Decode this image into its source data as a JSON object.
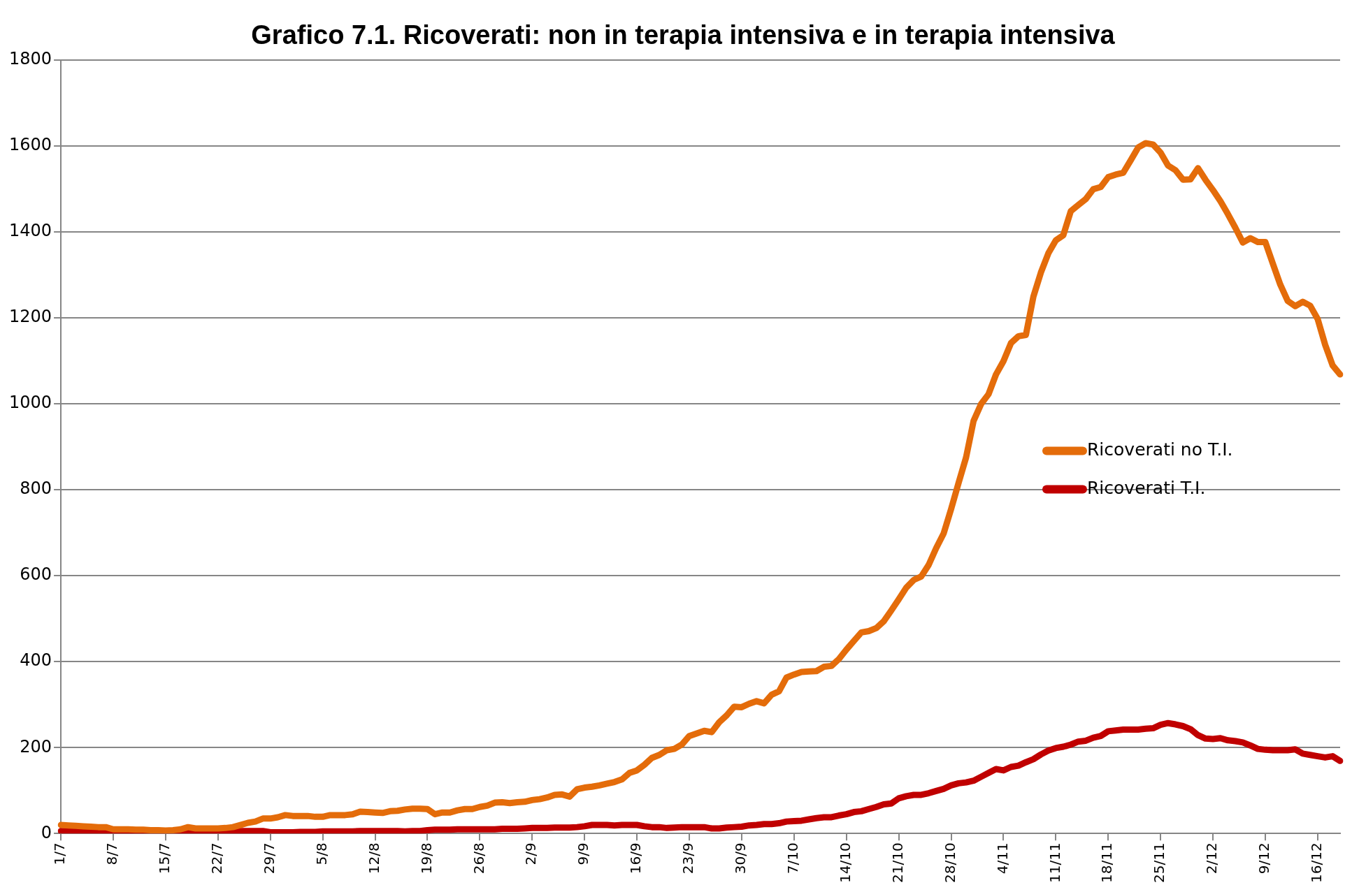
{
  "chart_data": {
    "type": "line",
    "title": "Grafico 7.1. Ricoverati: non in terapia intensiva e in terapia intensiva",
    "categories": [
      "1/7",
      null,
      null,
      null,
      null,
      null,
      null,
      "8/7",
      null,
      null,
      null,
      null,
      null,
      null,
      "15/7",
      null,
      null,
      null,
      null,
      null,
      null,
      "22/7",
      null,
      null,
      null,
      null,
      null,
      null,
      "29/7",
      null,
      null,
      null,
      null,
      null,
      null,
      "5/8",
      null,
      null,
      null,
      null,
      null,
      null,
      "12/8",
      null,
      null,
      null,
      null,
      null,
      null,
      "19/8",
      null,
      null,
      null,
      null,
      null,
      null,
      "26/8",
      null,
      null,
      null,
      null,
      null,
      null,
      "2/9",
      null,
      null,
      null,
      null,
      null,
      null,
      "9/9",
      null,
      null,
      null,
      null,
      null,
      null,
      "16/9",
      null,
      null,
      null,
      null,
      null,
      null,
      "23/9",
      null,
      null,
      null,
      null,
      null,
      null,
      "30/9",
      null,
      null,
      null,
      null,
      null,
      null,
      "7/10",
      null,
      null,
      null,
      null,
      null,
      null,
      "14/10",
      null,
      null,
      null,
      null,
      null,
      null,
      "21/10",
      null,
      null,
      null,
      null,
      null,
      null,
      "28/10",
      null,
      null,
      null,
      null,
      null,
      null,
      "4/11",
      null,
      null,
      null,
      null,
      null,
      null,
      "11/11",
      null,
      null,
      null,
      null,
      null,
      null,
      "18/11",
      null,
      null,
      null,
      null,
      null,
      null,
      "25/11",
      null,
      null,
      null,
      null,
      null,
      null,
      "2/12",
      null,
      null,
      null,
      null,
      null,
      null,
      "9/12",
      null,
      null,
      null,
      null,
      null,
      null,
      "16/12",
      null,
      null,
      null
    ],
    "series": [
      {
        "name": "Ricoverati no T.I.",
        "color": "#e46c0a",
        "values": [
          20,
          19,
          18,
          17,
          16,
          15,
          15,
          10,
          10,
          10,
          9,
          9,
          8,
          8,
          7,
          8,
          10,
          15,
          12,
          12,
          12,
          12,
          13,
          15,
          20,
          25,
          28,
          35,
          35,
          38,
          43,
          41,
          41,
          41,
          39,
          39,
          43,
          43,
          43,
          45,
          51,
          50,
          49,
          48,
          52,
          53,
          56,
          58,
          58,
          57,
          45,
          49,
          49,
          54,
          57,
          57,
          62,
          65,
          72,
          73,
          71,
          73,
          74,
          78,
          80,
          84,
          90,
          91,
          86,
          103,
          107,
          109,
          112,
          116,
          120,
          126,
          141,
          147,
          160,
          176,
          183,
          194,
          197,
          207,
          227,
          233,
          239,
          236,
          259,
          275,
          295,
          294,
          302,
          308,
          303,
          323,
          331,
          363,
          370,
          376,
          377,
          378,
          388,
          390,
          406,
          428,
          448,
          468,
          471,
          478,
          494,
          519,
          545,
          572,
          590,
          598,
          625,
          664,
          698,
          755,
          816,
          875,
          960,
          999,
          1022,
          1068,
          1099,
          1141,
          1157,
          1160,
          1249,
          1305,
          1350,
          1380,
          1392,
          1448,
          1462,
          1476,
          1499,
          1504,
          1527,
          1533,
          1537,
          1566,
          1596,
          1606,
          1603,
          1584,
          1554,
          1543,
          1521,
          1522,
          1548,
          1521,
          1497,
          1471,
          1441,
          1409,
          1375,
          1385,
          1376,
          1376,
          1326,
          1277,
          1239,
          1227,
          1237,
          1228,
          1197,
          1137,
          1089,
          1068
        ]
      },
      {
        "name": "Ricoverati T.I.",
        "color": "#c00000",
        "values": [
          6,
          6,
          6,
          6,
          6,
          6,
          6,
          5,
          5,
          5,
          5,
          5,
          5,
          5,
          5,
          5,
          5,
          5,
          5,
          5,
          6,
          6,
          6,
          6,
          6,
          6,
          6,
          6,
          3,
          3,
          3,
          3,
          4,
          4,
          4,
          5,
          5,
          5,
          5,
          5,
          6,
          6,
          6,
          6,
          6,
          6,
          5,
          6,
          6,
          8,
          9,
          9,
          9,
          10,
          10,
          10,
          10,
          10,
          10,
          11,
          11,
          11,
          12,
          13,
          13,
          13,
          14,
          14,
          14,
          15,
          17,
          20,
          20,
          20,
          19,
          20,
          20,
          20,
          17,
          15,
          15,
          13,
          14,
          15,
          15,
          15,
          15,
          12,
          12,
          14,
          15,
          16,
          19,
          20,
          22,
          22,
          24,
          28,
          29,
          30,
          33,
          36,
          38,
          38,
          42,
          45,
          50,
          52,
          57,
          62,
          68,
          70,
          82,
          87,
          90,
          90,
          94,
          99,
          104,
          112,
          117,
          119,
          123,
          132,
          141,
          150,
          147,
          155,
          158,
          166,
          173,
          184,
          193,
          199,
          202,
          207,
          214,
          216,
          223,
          227,
          238,
          240,
          242,
          242,
          242,
          244,
          245,
          253,
          257,
          254,
          250,
          243,
          229,
          221,
          220,
          222,
          217,
          215,
          212,
          205,
          197,
          195,
          194,
          194,
          194,
          196,
          186,
          183,
          180,
          177,
          180,
          169
        ]
      }
    ],
    "ylim": [
      0,
      1800
    ],
    "yticks": [
      0,
      200,
      400,
      600,
      800,
      1000,
      1200,
      1400,
      1600,
      1800
    ],
    "grid": "y",
    "legend": "right",
    "marker": "none",
    "line_style": "solid"
  }
}
